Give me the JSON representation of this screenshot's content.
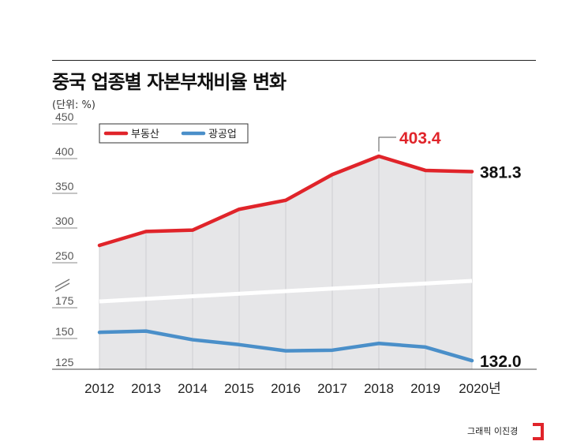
{
  "header": {
    "title": "중국 업종별 자본부채비율 변화",
    "unit": "(단위: %)",
    "credit": "그래픽 이진경"
  },
  "chart_data": {
    "type": "line",
    "title": "중국 업종별 자본부채비율 변화",
    "ylabel": "(단위: %)",
    "xlabel": "",
    "categories": [
      "2012",
      "2013",
      "2014",
      "2015",
      "2016",
      "2017",
      "2018",
      "2019",
      "2020"
    ],
    "x_tick_labels": [
      "2012",
      "2013",
      "2014",
      "2015",
      "2016",
      "2017",
      "2018",
      "2019",
      "2020년"
    ],
    "y_ticks_upper": [
      250,
      300,
      350,
      400,
      450
    ],
    "y_ticks_lower": [
      125,
      150,
      175
    ],
    "axis_break": true,
    "grid": false,
    "legend_position": "top-left",
    "series": [
      {
        "name": "부동산",
        "color": "#e0242a",
        "values": [
          275,
          295,
          297,
          327,
          340,
          377,
          403.4,
          383,
          381.3
        ]
      },
      {
        "name": "광공업",
        "color": "#4a8fc9",
        "values": [
          155,
          156,
          149,
          145,
          140,
          140.5,
          146,
          143,
          132.0
        ]
      }
    ],
    "annotations": [
      {
        "series": "부동산",
        "category": "2018",
        "text": "403.4",
        "color": "#e0242a"
      },
      {
        "series": "부동산",
        "category": "2020",
        "text": "381.3",
        "color": "#111111"
      },
      {
        "series": "광공업",
        "category": "2020",
        "text": "132.0",
        "color": "#111111"
      }
    ],
    "fill_color": "#e6e6e8",
    "break_line_color": "#ffffff"
  }
}
